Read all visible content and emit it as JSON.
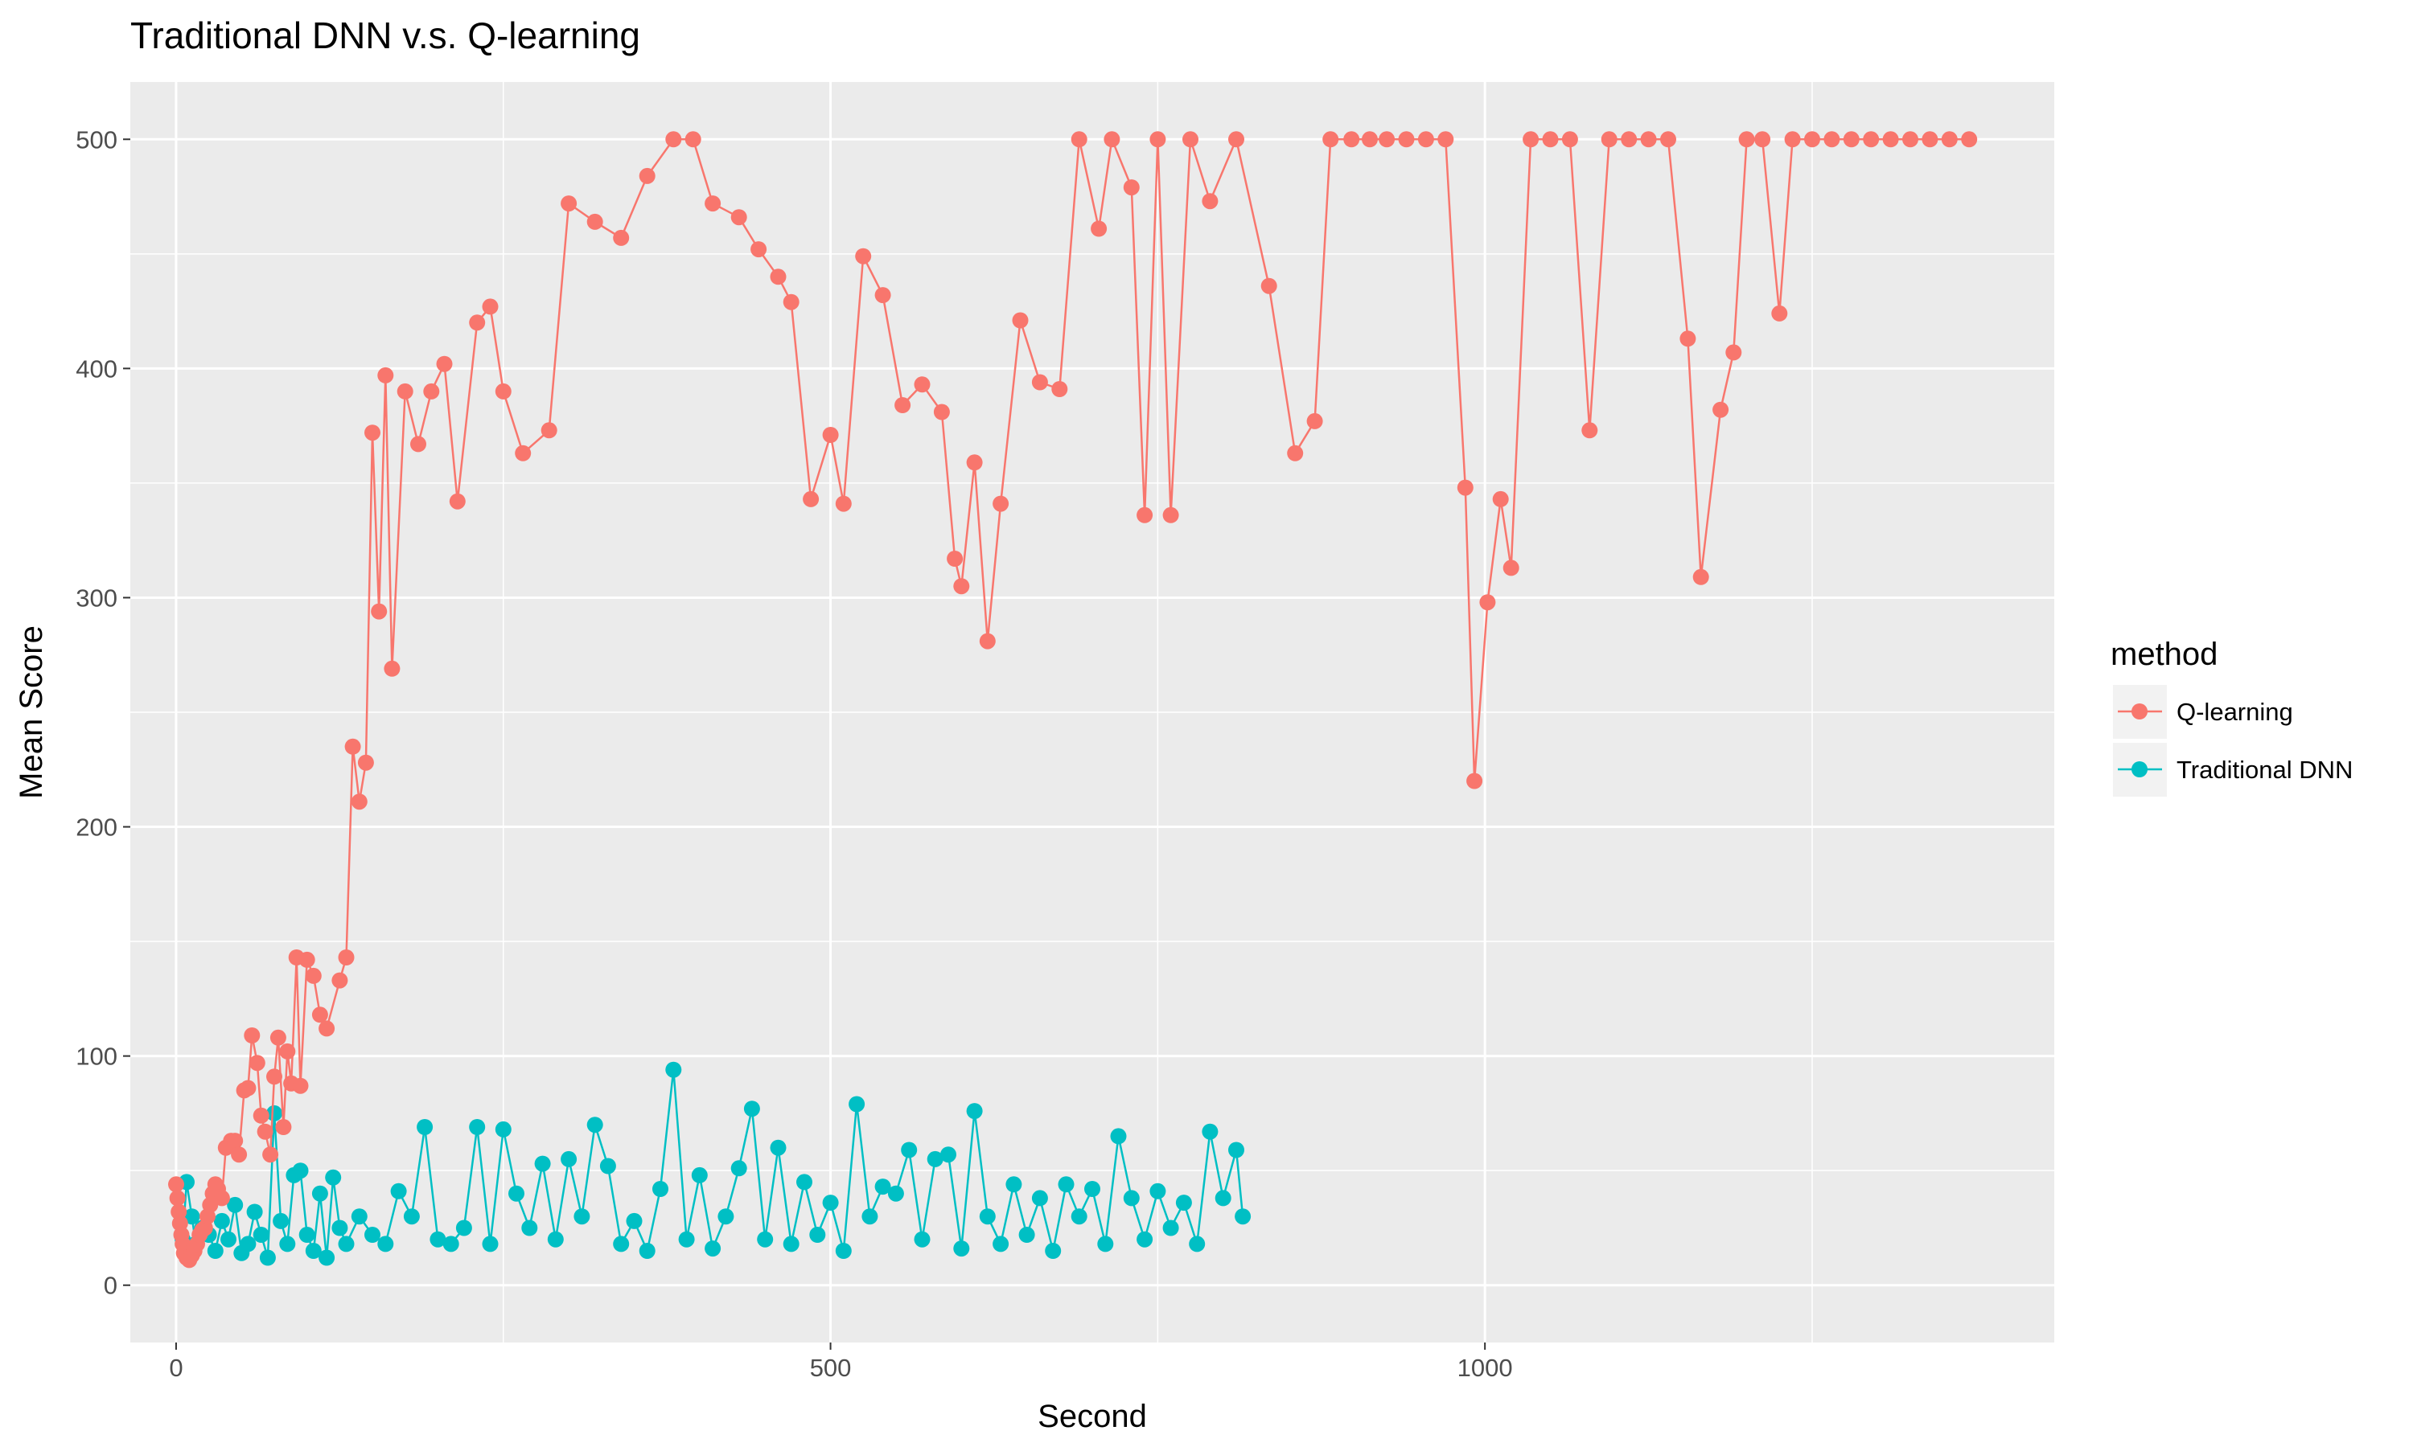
{
  "chart_data": {
    "type": "line",
    "title": "Traditional DNN v.s. Q-learning",
    "xlabel": "Second",
    "ylabel": "Mean Score",
    "xlim": [
      -35,
      1435
    ],
    "ylim": [
      -25,
      525
    ],
    "x_ticks": [
      0,
      500,
      1000
    ],
    "y_ticks": [
      0,
      100,
      200,
      300,
      400,
      500
    ],
    "grid": true,
    "legend": {
      "title": "method",
      "position": "right",
      "entries": [
        "Q-learning",
        "Traditional DNN"
      ]
    },
    "series": [
      {
        "name": "Q-learning",
        "color": "#F8766D",
        "x": [
          0,
          1,
          2,
          3,
          4,
          5,
          6,
          8,
          10,
          12,
          14,
          16,
          18,
          20,
          22,
          24,
          26,
          28,
          30,
          32,
          35,
          38,
          42,
          45,
          48,
          52,
          55,
          58,
          62,
          65,
          68,
          72,
          75,
          78,
          82,
          85,
          88,
          92,
          95,
          100,
          105,
          110,
          115,
          125,
          130,
          135,
          140,
          145,
          150,
          155,
          160,
          165,
          175,
          185,
          195,
          205,
          215,
          230,
          240,
          250,
          265,
          285,
          300,
          320,
          340,
          360,
          380,
          395,
          410,
          430,
          445,
          460,
          470,
          485,
          500,
          510,
          525,
          540,
          555,
          570,
          585,
          595,
          600,
          610,
          620,
          630,
          645,
          660,
          675,
          690,
          705,
          715,
          730,
          740,
          750,
          760,
          775,
          790,
          810,
          835,
          855,
          870,
          882,
          898,
          912,
          925,
          940,
          955,
          970,
          985,
          992,
          1002,
          1012,
          1020,
          1035,
          1050,
          1065,
          1080,
          1095,
          1110,
          1125,
          1140,
          1155,
          1165,
          1180,
          1190,
          1200,
          1212,
          1225,
          1235,
          1250,
          1265,
          1280,
          1295,
          1310,
          1325,
          1340,
          1355,
          1370
        ],
        "y": [
          44,
          38,
          32,
          27,
          22,
          18,
          14,
          12,
          11,
          13,
          15,
          18,
          22,
          24,
          25,
          30,
          35,
          40,
          44,
          42,
          38,
          60,
          63,
          63,
          57,
          85,
          86,
          109,
          97,
          74,
          67,
          57,
          91,
          108,
          69,
          102,
          88,
          143,
          87,
          142,
          135,
          118,
          112,
          133,
          143,
          235,
          211,
          228,
          372,
          294,
          397,
          269,
          390,
          367,
          390,
          402,
          342,
          420,
          427,
          390,
          363,
          373,
          472,
          464,
          457,
          484,
          500,
          500,
          472,
          466,
          452,
          440,
          429,
          343,
          371,
          341,
          449,
          432,
          384,
          393,
          381,
          317,
          305,
          359,
          281,
          341,
          421,
          394,
          391,
          500,
          461,
          500,
          479,
          336,
          500,
          336,
          500,
          473,
          500,
          436,
          363,
          377,
          500,
          500,
          500,
          500,
          500,
          500,
          500,
          348,
          220,
          298,
          343,
          313,
          500,
          500,
          500,
          373,
          500,
          500,
          500,
          500,
          413,
          309,
          382,
          407,
          500,
          500,
          424,
          500,
          500,
          500,
          500,
          500,
          500,
          500,
          500,
          500,
          500
        ]
      },
      {
        "name": "Traditional DNN",
        "color": "#00BFC4",
        "x": [
          5,
          8,
          12,
          15,
          20,
          25,
          30,
          35,
          40,
          45,
          50,
          55,
          60,
          65,
          70,
          75,
          80,
          85,
          90,
          95,
          100,
          105,
          110,
          115,
          120,
          125,
          130,
          140,
          150,
          160,
          170,
          180,
          190,
          200,
          210,
          220,
          230,
          240,
          250,
          260,
          270,
          280,
          290,
          300,
          310,
          320,
          330,
          340,
          350,
          360,
          370,
          380,
          390,
          400,
          410,
          420,
          430,
          440,
          450,
          460,
          470,
          480,
          490,
          500,
          510,
          520,
          530,
          540,
          550,
          560,
          570,
          580,
          590,
          600,
          610,
          620,
          630,
          640,
          650,
          660,
          670,
          680,
          690,
          700,
          710,
          720,
          730,
          740,
          750,
          760,
          770,
          780,
          790,
          800,
          810,
          815
        ],
        "y": [
          20,
          45,
          30,
          18,
          25,
          22,
          15,
          28,
          20,
          35,
          14,
          18,
          32,
          22,
          12,
          75,
          28,
          18,
          48,
          50,
          22,
          15,
          40,
          12,
          47,
          25,
          18,
          30,
          22,
          18,
          41,
          30,
          69,
          20,
          18,
          25,
          69,
          18,
          68,
          40,
          25,
          53,
          20,
          55,
          30,
          70,
          52,
          18,
          28,
          15,
          42,
          94,
          20,
          48,
          16,
          30,
          51,
          77,
          20,
          60,
          18,
          45,
          22,
          36,
          15,
          79,
          30,
          43,
          40,
          59,
          20,
          55,
          57,
          16,
          76,
          30,
          18,
          44,
          22,
          38,
          15,
          44,
          30,
          42,
          18,
          65,
          38,
          20,
          41,
          25,
          36,
          18,
          67,
          38,
          59,
          30
        ]
      }
    ]
  }
}
